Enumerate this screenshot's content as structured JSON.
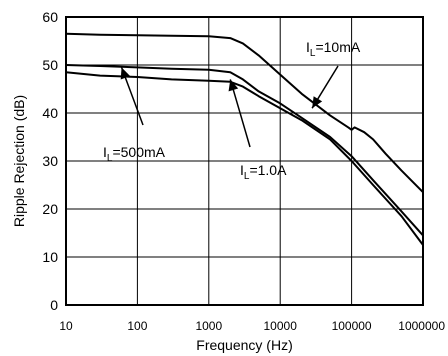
{
  "chart_data": {
    "type": "line",
    "xscale": "log",
    "xlabel": "Frequency (Hz)",
    "ylabel": "Ripple Rejection (dB)",
    "xlim": [
      10,
      1000000
    ],
    "ylim": [
      0,
      60
    ],
    "grid": {
      "x": true,
      "y": true
    },
    "xticks": [
      10,
      100,
      1000,
      10000,
      100000,
      1000000
    ],
    "xtick_labels": [
      "10",
      "100",
      "1000",
      "10000",
      "100000",
      "1000000"
    ],
    "yticks": [
      0,
      10,
      20,
      30,
      40,
      50,
      60
    ],
    "ytick_labels": [
      "0",
      "10",
      "20",
      "30",
      "40",
      "50",
      "60"
    ],
    "series": [
      {
        "name": "IL=10mA",
        "x": [
          10,
          30,
          100,
          300,
          1000,
          2000,
          3000,
          5000,
          10000,
          20000,
          50000,
          90000,
          100000,
          110000,
          150000,
          200000,
          300000,
          500000,
          1000000
        ],
        "y": [
          56.5,
          56.3,
          56.2,
          56.1,
          56.0,
          55.6,
          54.5,
          52.0,
          48.0,
          44.0,
          39.5,
          37.0,
          36.5,
          37.0,
          36.0,
          34.5,
          31.5,
          28.0,
          23.5
        ]
      },
      {
        "name": "IL=500mA",
        "x": [
          10,
          30,
          100,
          300,
          1000,
          2000,
          3000,
          5000,
          10000,
          20000,
          50000,
          100000,
          200000,
          500000,
          1000000
        ],
        "y": [
          50.0,
          49.8,
          49.5,
          49.2,
          49.0,
          48.5,
          47.0,
          44.5,
          42.0,
          39.0,
          35.0,
          31.0,
          26.0,
          19.5,
          14.5
        ]
      },
      {
        "name": "IL=1.0A",
        "x": [
          10,
          30,
          100,
          300,
          1000,
          2000,
          3000,
          5000,
          10000,
          20000,
          50000,
          100000,
          200000,
          500000,
          1000000
        ],
        "y": [
          48.5,
          47.8,
          47.5,
          47.0,
          46.7,
          46.5,
          45.5,
          43.5,
          41.0,
          38.5,
          34.5,
          30.0,
          25.0,
          18.5,
          12.5
        ]
      }
    ],
    "annotations": [
      {
        "label_main": "I",
        "label_sub": "L",
        "label_rest": "=10mA",
        "series": "IL=10mA",
        "arrow_to_x": 28000,
        "arrow_to_y": 41
      },
      {
        "label_main": "I",
        "label_sub": "L",
        "label_rest": "=500mA",
        "series": "IL=500mA",
        "arrow_to_x": 60,
        "arrow_to_y": 49.5
      },
      {
        "label_main": "I",
        "label_sub": "L",
        "label_rest": "=1.0A",
        "series": "IL=1.0A",
        "arrow_to_x": 2000,
        "arrow_to_y": 47
      }
    ]
  }
}
